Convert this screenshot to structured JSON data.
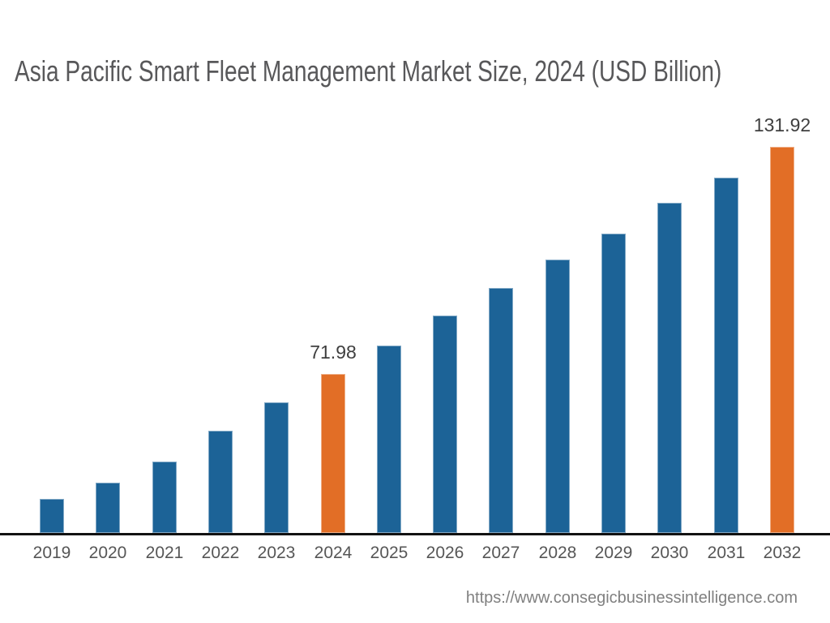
{
  "chart": {
    "title": "Asia Pacific Smart Fleet Management Market Size, 2024 (USD Billion)"
  },
  "chart_data": {
    "type": "bar",
    "title": "Asia Pacific Smart Fleet Management Market Size, 2024 (USD Billion)",
    "xlabel": "",
    "ylabel": "",
    "unit": "USD Billion",
    "categories": [
      "2019",
      "2020",
      "2021",
      "2022",
      "2023",
      "2024",
      "2025",
      "2026",
      "2027",
      "2028",
      "2029",
      "2030",
      "2031",
      "2032"
    ],
    "values": [
      39.0,
      43.3,
      48.8,
      57.0,
      64.5,
      71.98,
      79.4,
      87.4,
      94.6,
      102.1,
      109.0,
      117.1,
      123.7,
      131.92
    ],
    "data_labels": {
      "2024": "71.98",
      "2032": "131.92"
    },
    "highlight_categories": [
      "2024",
      "2032"
    ],
    "ylim": [
      30,
      140
    ],
    "grid": false,
    "legend": false,
    "value_axis_visible": false,
    "colors": {
      "bar_default": "#1C6397",
      "bar_highlight": "#E26E26",
      "axis_line": "#121212",
      "axis_text": "#565656",
      "data_label_text": "#3F3F3F",
      "title_text": "#58585A",
      "source_text": "#808080"
    }
  },
  "footer": {
    "source_url": "https://www.consegicbusinessintelligence.com"
  }
}
